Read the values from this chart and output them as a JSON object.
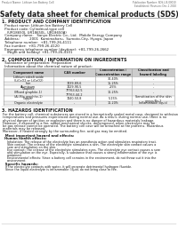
{
  "header_left": "Product Name: Lithium Ion Battery Cell",
  "header_right_line1": "Publication Number: SDS-LIB-00010",
  "header_right_line2": "Established / Revision: Dec.1 2010",
  "title": "Safety data sheet for chemical products (SDS)",
  "section1_title": "1. PRODUCT AND COMPANY IDENTIFICATION",
  "section1_lines": [
    " Product name: Lithium Ion Battery Cell",
    " Product code: Cylindrical-type cell",
    "   (UR18650J, UR18650L, UR18650A)",
    " Company name:   Sanyo Electric Co., Ltd.  Mobile Energy Company",
    " Address:         2001  Kamimaharu,  Sumoto-City, Hyogo, Japan",
    " Telephone number:  +81-799-26-4111",
    " Fax number:  +81-799-26-4120",
    " Emergency telephone number (daytime): +81-799-26-2662",
    "   (Night and holiday) +81-799-26-4101"
  ],
  "section2_title": "2. COMPOSITION / INFORMATION ON INGREDIENTS",
  "section2_intro": " Substance or preparation: Preparation",
  "section2_sub": " Information about the chemical nature of product:",
  "table_headers": [
    "Component name",
    "CAS number",
    "Concentration /\nConcentration range",
    "Classification and\nhazard labeling"
  ],
  "table_rows": [
    [
      "Lithium cobalt oxide\n(LiCoO2 or LiCoO2)",
      "-",
      "30-40%",
      "-"
    ],
    [
      "Iron",
      "7439-89-6",
      "15-25%",
      "-"
    ],
    [
      "Aluminum",
      "7429-90-5",
      "2-5%",
      "-"
    ],
    [
      "Graphite\n(Mixed graphite-1)\n(AI-Mix graphite-1)",
      "77763-62-5\n77763-44-2",
      "10-25%",
      "-"
    ],
    [
      "Copper",
      "7440-50-8",
      "5-15%",
      "Sensitization of the skin\ngroup No.2"
    ],
    [
      "Organic electrolyte",
      "-",
      "10-20%",
      "Inflammable liquid"
    ]
  ],
  "section3_title": "3. HAZARDS IDENTIFICATION",
  "section3_text": [
    "For the battery cell, chemical substances are stored in a hermetically sealed metal case, designed to withstand",
    "temperatures and pressures experienced during normal use. As a result, during normal use, there is no",
    "physical danger of ignition or explosion and there is no danger of hazardous materials leakage.",
    "However, if exposed to a fire, added mechanical shocks, decomposed, when electrolyte may be",
    "be gas release cannot be operated. The battery cell case will be breached at fire patterns. Hazardous",
    "materials may be released.",
    "Moreover, if heated strongly by the surrounding fire, acid gas may be emitted."
  ],
  "section3_effects_title": "  Most important hazard and effects:",
  "section3_human_title": "Human health effects:",
  "section3_human_lines": [
    "Inhalation: The release of the electrolyte has an anesthesia action and stimulates respiratory tract.",
    "Skin contact: The release of the electrolyte stimulates a skin. The electrolyte skin contact causes a",
    "sore and stimulation on the skin.",
    "Eye contact: The release of the electrolyte stimulates eyes. The electrolyte eye contact causes a sore",
    "and stimulation on the eye. Especially, a substance that causes a strong inflammation of the eye is",
    "contained.",
    "Environmental effects: Since a battery cell remains in the environment, do not throw out it into the",
    "environment."
  ],
  "section3_specific_title": "  Specific hazards:",
  "section3_specific_lines": [
    "If the electrolyte contacts with water, it will generate detrimental hydrogen fluoride.",
    "Since the liquid electrolyte is inflammable liquid, do not bring close to fire."
  ],
  "bg_color": "#ffffff",
  "text_color": "#1a1a1a",
  "table_header_bg": "#cccccc",
  "table_line_color": "#999999"
}
